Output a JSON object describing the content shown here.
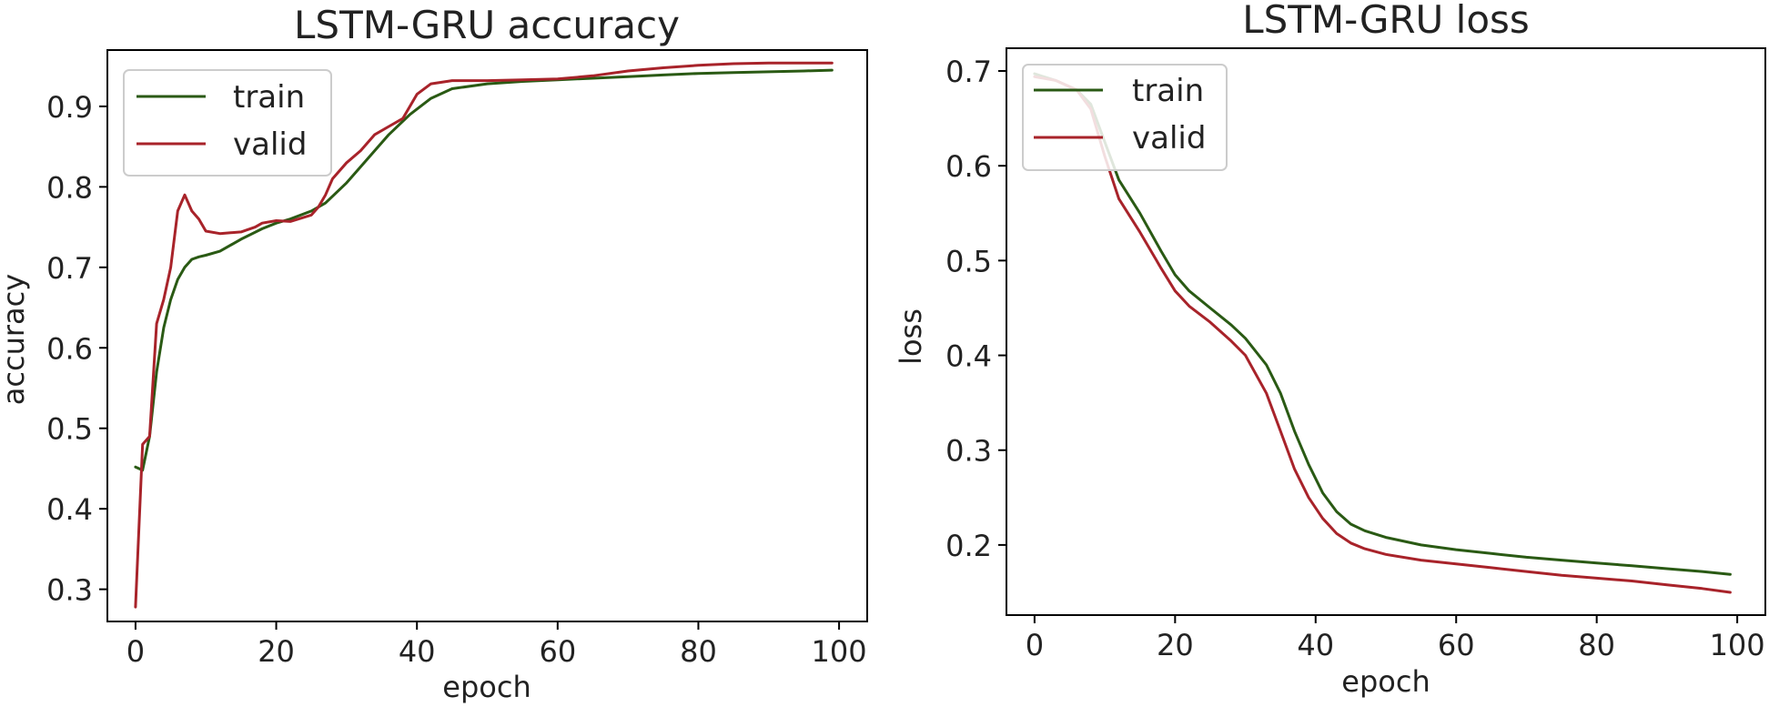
{
  "chart_data": [
    {
      "type": "line",
      "title": "LSTM-GRU accuracy",
      "xlabel": "epoch",
      "ylabel": "accuracy",
      "xlim": [
        -4,
        104
      ],
      "ylim": [
        0.26,
        0.97
      ],
      "xticks": [
        0,
        20,
        40,
        60,
        80,
        100
      ],
      "xtick_labels": [
        "0",
        "20",
        "40",
        "60",
        "80",
        "100"
      ],
      "yticks": [
        0.3,
        0.4,
        0.5,
        0.6,
        0.7,
        0.8,
        0.9
      ],
      "ytick_labels": [
        "0.3",
        "0.4",
        "0.5",
        "0.6",
        "0.7",
        "0.8",
        "0.9"
      ],
      "legend_position": "upper-left",
      "grid": false,
      "series": [
        {
          "name": "train",
          "color": "#2a5a14",
          "x": [
            0,
            1,
            2,
            3,
            4,
            5,
            6,
            7,
            8,
            9,
            10,
            12,
            15,
            18,
            20,
            22,
            25,
            27,
            30,
            33,
            36,
            39,
            42,
            45,
            50,
            55,
            60,
            65,
            70,
            75,
            80,
            85,
            90,
            95,
            99
          ],
          "y": [
            0.452,
            0.448,
            0.49,
            0.57,
            0.625,
            0.66,
            0.685,
            0.7,
            0.71,
            0.713,
            0.715,
            0.72,
            0.735,
            0.748,
            0.755,
            0.76,
            0.77,
            0.78,
            0.805,
            0.835,
            0.865,
            0.89,
            0.91,
            0.922,
            0.928,
            0.931,
            0.933,
            0.935,
            0.937,
            0.939,
            0.941,
            0.942,
            0.943,
            0.944,
            0.945
          ]
        },
        {
          "name": "valid",
          "color": "#a8232a",
          "x": [
            0,
            1,
            2,
            3,
            4,
            5,
            6,
            7,
            8,
            9,
            10,
            12,
            15,
            17,
            18,
            20,
            22,
            25,
            26,
            27,
            28,
            30,
            32,
            34,
            36,
            38,
            40,
            42,
            45,
            50,
            55,
            60,
            65,
            70,
            75,
            80,
            85,
            90,
            95,
            99
          ],
          "y": [
            0.278,
            0.48,
            0.49,
            0.63,
            0.66,
            0.7,
            0.77,
            0.79,
            0.77,
            0.76,
            0.745,
            0.742,
            0.744,
            0.75,
            0.755,
            0.758,
            0.757,
            0.765,
            0.775,
            0.79,
            0.81,
            0.83,
            0.845,
            0.865,
            0.875,
            0.885,
            0.915,
            0.928,
            0.932,
            0.932,
            0.933,
            0.934,
            0.938,
            0.944,
            0.948,
            0.951,
            0.953,
            0.954,
            0.954,
            0.954
          ]
        }
      ]
    },
    {
      "type": "line",
      "title": "LSTM-GRU loss",
      "xlabel": "epoch",
      "ylabel": "loss",
      "xlim": [
        -4,
        104
      ],
      "ylim": [
        0.126,
        0.724
      ],
      "xticks": [
        0,
        20,
        40,
        60,
        80,
        100
      ],
      "xtick_labels": [
        "0",
        "20",
        "40",
        "60",
        "80",
        "100"
      ],
      "yticks": [
        0.2,
        0.3,
        0.4,
        0.5,
        0.6,
        0.7
      ],
      "ytick_labels": [
        "0.2",
        "0.3",
        "0.4",
        "0.5",
        "0.6",
        "0.7"
      ],
      "legend_position": "upper-left",
      "grid": false,
      "series": [
        {
          "name": "train",
          "color": "#2a5a14",
          "x": [
            0,
            3,
            6,
            8,
            10,
            12,
            15,
            18,
            20,
            22,
            25,
            28,
            30,
            33,
            35,
            37,
            39,
            41,
            43,
            45,
            47,
            50,
            55,
            60,
            65,
            70,
            75,
            80,
            85,
            90,
            95,
            99
          ],
          "y": [
            0.697,
            0.69,
            0.68,
            0.665,
            0.625,
            0.585,
            0.55,
            0.51,
            0.485,
            0.468,
            0.45,
            0.432,
            0.418,
            0.39,
            0.36,
            0.32,
            0.285,
            0.255,
            0.235,
            0.222,
            0.215,
            0.208,
            0.2,
            0.195,
            0.191,
            0.187,
            0.184,
            0.181,
            0.178,
            0.175,
            0.172,
            0.169
          ]
        },
        {
          "name": "valid",
          "color": "#a8232a",
          "x": [
            0,
            3,
            6,
            8,
            10,
            12,
            15,
            18,
            20,
            22,
            25,
            28,
            30,
            33,
            35,
            37,
            39,
            41,
            43,
            45,
            47,
            50,
            55,
            60,
            65,
            70,
            75,
            80,
            85,
            90,
            95,
            99
          ],
          "y": [
            0.694,
            0.69,
            0.68,
            0.66,
            0.61,
            0.565,
            0.53,
            0.492,
            0.468,
            0.452,
            0.435,
            0.415,
            0.4,
            0.36,
            0.32,
            0.28,
            0.25,
            0.228,
            0.212,
            0.202,
            0.196,
            0.19,
            0.184,
            0.18,
            0.176,
            0.172,
            0.168,
            0.165,
            0.162,
            0.158,
            0.154,
            0.15
          ]
        }
      ]
    }
  ]
}
